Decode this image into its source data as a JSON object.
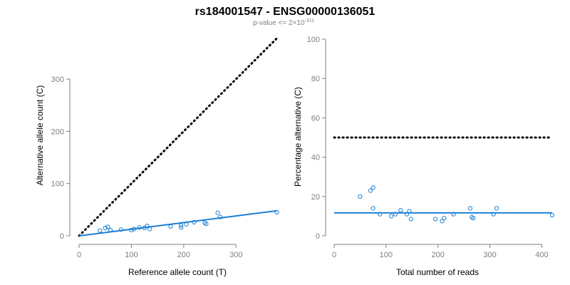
{
  "title": "rs184001547 - ENSG00000136051",
  "subtitle": {
    "prefix": "p-value <= 2×10",
    "exponent": "-311"
  },
  "colors": {
    "points": "#1a7fd4",
    "fit_line": "#1a7fd4",
    "reference_line": "#000000",
    "axis": "#7f7f7f"
  },
  "chart_data": [
    {
      "type": "scatter",
      "xlabel": "Reference allele count (T)",
      "ylabel": "Alternative allele count (C)",
      "xlim": [
        0,
        380
      ],
      "ylim": [
        0,
        300
      ],
      "xticks": [
        "0",
        "100",
        "200",
        "300"
      ],
      "yticks": [
        "0",
        "100",
        "200",
        "300"
      ],
      "points": [
        [
          40,
          10
        ],
        [
          50,
          15
        ],
        [
          55,
          17
        ],
        [
          60,
          11
        ],
        [
          80,
          12
        ],
        [
          100,
          11
        ],
        [
          105,
          13
        ],
        [
          115,
          16
        ],
        [
          125,
          15
        ],
        [
          130,
          19
        ],
        [
          135,
          13
        ],
        [
          175,
          18
        ],
        [
          195,
          16
        ],
        [
          195,
          20
        ],
        [
          205,
          22
        ],
        [
          220,
          26
        ],
        [
          240,
          25
        ],
        [
          243,
          23
        ],
        [
          265,
          44
        ],
        [
          270,
          36
        ],
        [
          378,
          45
        ]
      ],
      "fit_line": [
        [
          0,
          0
        ],
        [
          378,
          48
        ]
      ],
      "reference_line": [
        [
          0,
          0
        ],
        [
          378,
          378
        ]
      ]
    },
    {
      "type": "scatter",
      "xlabel": "Total number of reads",
      "ylabel": "Percentage alternative (C)",
      "xlim": [
        0,
        420
      ],
      "ylim": [
        0,
        100
      ],
      "xticks": [
        "0",
        "100",
        "200",
        "300",
        "400"
      ],
      "yticks": [
        "0",
        "20",
        "40",
        "60",
        "80",
        "100"
      ],
      "points": [
        [
          50,
          20
        ],
        [
          70,
          23
        ],
        [
          75,
          24.5
        ],
        [
          75,
          14
        ],
        [
          88,
          11
        ],
        [
          110,
          10
        ],
        [
          118,
          11
        ],
        [
          128,
          13
        ],
        [
          140,
          11
        ],
        [
          145,
          12.5
        ],
        [
          148,
          8.5
        ],
        [
          195,
          8.5
        ],
        [
          208,
          7.5
        ],
        [
          212,
          9
        ],
        [
          230,
          11
        ],
        [
          262,
          14
        ],
        [
          265,
          9.5
        ],
        [
          268,
          9
        ],
        [
          307,
          11
        ],
        [
          313,
          14
        ],
        [
          420,
          10.5
        ]
      ],
      "fit_line": [
        [
          0,
          11.7
        ],
        [
          420,
          11.7
        ]
      ],
      "reference_line": [
        [
          0,
          50
        ],
        [
          420,
          50
        ]
      ]
    }
  ]
}
